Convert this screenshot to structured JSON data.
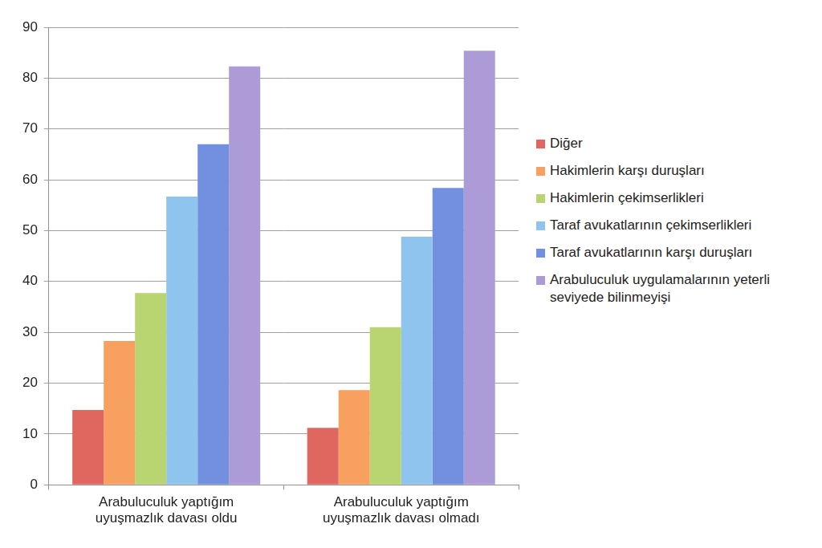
{
  "chart_data": {
    "type": "bar",
    "categories": [
      "Arabuluculuk yaptığım uyuşmazlık davası oldu",
      "Arabuluculuk yaptığım uyuşmazlık davası olmadı"
    ],
    "series": [
      {
        "name": "Diğer",
        "color": "#e0675f",
        "values": [
          14.7,
          11.2
        ]
      },
      {
        "name": "Hakimlerin karşı duruşları",
        "color": "#f8a060",
        "values": [
          28.3,
          18.6
        ]
      },
      {
        "name": "Hakimlerin çekimserlikleri",
        "color": "#b8d572",
        "values": [
          37.7,
          31
        ]
      },
      {
        "name": "Taraf avukatlarının çekimserlikleri",
        "color": "#8fc4ee",
        "values": [
          56.7,
          48.8
        ]
      },
      {
        "name": "Taraf avukatlarının karşı duruşları",
        "color": "#7390e0",
        "values": [
          67,
          58.4
        ]
      },
      {
        "name": "Arabuluculuk uygulamalarının yeterli seviyede bilinmeyişi",
        "color": "#ad9bd8",
        "values": [
          82.3,
          85.4
        ]
      }
    ],
    "ylim": [
      0,
      90
    ],
    "yticks": [
      0,
      10,
      20,
      30,
      40,
      50,
      60,
      70,
      80,
      90
    ],
    "grid": true,
    "legend": "right"
  }
}
